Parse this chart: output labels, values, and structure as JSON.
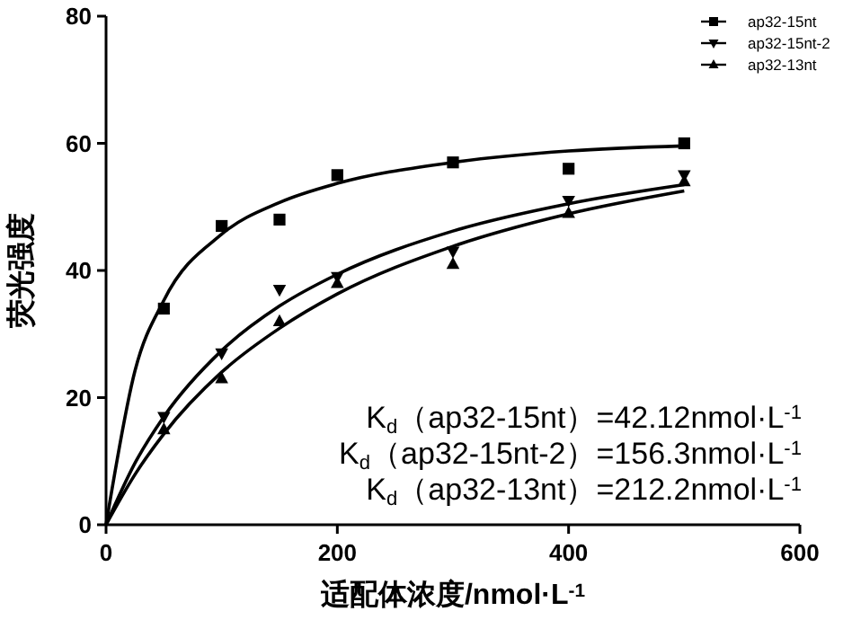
{
  "chart_data": {
    "type": "scatter",
    "xlabel": "适配体浓度/nmol·L$^{-1}$",
    "ylabel": "荧光强度",
    "xlim": [
      0,
      600
    ],
    "xticks": [
      0,
      200,
      400,
      600
    ],
    "ylim": [
      0,
      80
    ],
    "yticks": [
      0,
      20,
      40,
      60,
      80
    ],
    "grid": false,
    "legend": "top right",
    "annotations": [
      "K$_{d}$（ap32-15nt）=42.12nmol·L$^{-1}$",
      "K$_{d}$（ap32-15nt-2）=156.3nmol·L$^{-1}$",
      "K$_{d}$（ap32-13nt）=212.2nmol·L$^{-1}$"
    ],
    "x": [
      50,
      100,
      150,
      200,
      300,
      400,
      500
    ],
    "series": [
      {
        "name": "ap32-15nt",
        "color": "#000000",
        "marker": "square",
        "values": [
          34,
          47,
          48,
          55,
          57,
          56,
          60
        ]
      },
      {
        "name": "ap32-15nt-2",
        "color": "#000000",
        "marker": "triangle-down",
        "values": [
          17,
          27,
          37,
          39,
          43,
          51,
          55
        ]
      },
      {
        "name": "ap32-13nt",
        "color": "#000000",
        "marker": "triangle",
        "values": [
          15,
          23,
          32,
          38,
          41,
          49,
          54
        ]
      },
      {
        "type": "line",
        "color": "#000000",
        "marker": "none",
        "x": [
          0,
          25,
          50,
          100,
          150,
          200,
          300,
          400,
          500
        ],
        "values": [
          0,
          24.2,
          35.3,
          45.7,
          50.7,
          53.7,
          57,
          58.8,
          59.6
        ]
      },
      {
        "type": "line",
        "color": "#000000",
        "marker": "none",
        "x": [
          0,
          25,
          50,
          100,
          150,
          200,
          300,
          400,
          500
        ],
        "values": [
          0,
          9.7,
          17,
          27.4,
          34.4,
          39.4,
          46.2,
          50.5,
          53.5
        ]
      },
      {
        "type": "line",
        "color": "#000000",
        "marker": "none",
        "x": [
          0,
          25,
          50,
          100,
          150,
          200,
          300,
          400,
          500
        ],
        "values": [
          0,
          7.9,
          14.3,
          24,
          30.9,
          36.3,
          43.8,
          48.9,
          52.5
        ]
      }
    ]
  }
}
